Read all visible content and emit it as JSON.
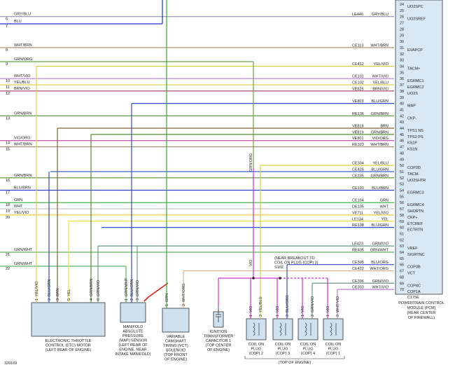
{
  "figure_id": "320169",
  "left_wires": [
    {
      "number": "6",
      "color_label": "GRY/BLU",
      "color": "#8a8fb8"
    },
    {
      "number": "7",
      "color_label": "BLU",
      "color": "#2030d0"
    },
    {
      "number": "8",
      "color_label": "WHT/BRN",
      "color": "#a88860"
    },
    {
      "number": "9",
      "color_label": "GRN/ORG",
      "color": "#6aa040"
    },
    {
      "number": "10",
      "color_label": "WHT/VIO",
      "color": "#b080c8"
    },
    {
      "number": "11",
      "color_label": "YEL/BLU",
      "color": "#d0d040"
    },
    {
      "number": "12",
      "color_label": "BRN/VIO",
      "color": "#a05070"
    },
    {
      "number": "13",
      "color_label": "GRN/BRN",
      "color": "#5a8a30"
    },
    {
      "number": "14",
      "color_label": "VIO/ORG",
      "color": "#c040a0"
    },
    {
      "number": "15",
      "color_label": "WHT/BRN",
      "color": "#a88860"
    },
    {
      "number": "16",
      "color_label": "GRN/BRN",
      "color": "#5a8a30"
    },
    {
      "number": "17",
      "color_label": "BLU/BRN",
      "color": "#3040c0"
    },
    {
      "number": "18",
      "color_label": "GRN",
      "color": "#30b030"
    },
    {
      "number": "19",
      "color_label": "WHT",
      "color": "#c0c0c0"
    },
    {
      "number": "20",
      "color_label": "YEL/VIO",
      "color": "#e0d050"
    },
    {
      "number": "21",
      "color_label": "GRN/WHT",
      "color": "#60b060"
    },
    {
      "number": "22",
      "color_label": "GRN/WHT",
      "color": "#60b060"
    }
  ],
  "pcm": {
    "connector": "C175E",
    "label": [
      "POWERTRAIN CONTROL",
      "MODULE (PCM)",
      "(REAR CENTER",
      "OF FIREWALL)"
    ],
    "rows": [
      {
        "pin": "24",
        "signal": "UO2SPC"
      },
      {
        "pin": "25"
      },
      {
        "pin": "26",
        "code": "LE446",
        "color_label": "GRY/BLU",
        "signal": "UO2SREF",
        "color": "#8a8fb8"
      },
      {
        "pin": "27"
      },
      {
        "pin": "28"
      },
      {
        "pin": "29"
      },
      {
        "pin": "30"
      },
      {
        "pin": "31",
        "code": "CE113",
        "color_label": "WHT/BRN",
        "signal": "EVAPCP",
        "color": "#a88860"
      },
      {
        "pin": "32"
      },
      {
        "pin": "33"
      },
      {
        "pin": "34",
        "code": "CE412",
        "color_label": "YEL/VIO",
        "signal": "TACM+",
        "color": "#e0d050"
      },
      {
        "pin": "35"
      },
      {
        "pin": "36",
        "code": "CE101",
        "color_label": "WHT/VIO",
        "signal": "EGRMC1",
        "color": "#b080c8"
      },
      {
        "pin": "37",
        "code": "CE102",
        "color_label": "YEL/BLU",
        "signal": "EGRMC2",
        "color": "#d0d040"
      },
      {
        "pin": "38",
        "code": "VE826",
        "color_label": "BRN/VIO",
        "signal": "UO2S",
        "color": "#a05070"
      },
      {
        "pin": "39"
      },
      {
        "pin": "40",
        "code": "VE803",
        "color_label": "BLU/GRN",
        "signal": "MAP",
        "color": "#2a50c8"
      },
      {
        "pin": "41"
      },
      {
        "pin": "42",
        "code": "RE136",
        "color_label": "GRN/BRN",
        "signal": "CKP-",
        "color": "#5a8a30"
      },
      {
        "pin": "43"
      },
      {
        "pin": "44",
        "code": "VE818",
        "color_label": "BRN",
        "signal": "TPS1 NS",
        "color": "#8a6030"
      },
      {
        "pin": "45",
        "code": "VE819",
        "color_label": "GRN/BRN",
        "signal": "TPS2 PS",
        "color": "#5a8a30"
      },
      {
        "pin": "46",
        "code": "VE801",
        "color_label": "VIO/ORG",
        "signal": "KS1P",
        "color": "#c040a0"
      },
      {
        "pin": "47",
        "code": "RE323",
        "color_label": "WHT/BRN",
        "signal": "KS1N",
        "color": "#a88860"
      },
      {
        "pin": "48"
      },
      {
        "pin": "49"
      },
      {
        "pin": "50",
        "code": "CE304",
        "color_label": "YEL/BLU",
        "signal": "COP2D",
        "color": "#d0d040"
      },
      {
        "pin": "51",
        "code": "CE426",
        "color_label": "BLU/GRN",
        "signal": "TACM-",
        "color": "#2a50c8"
      },
      {
        "pin": "52",
        "code": "CE235",
        "color_label": "GRN/BRN",
        "signal": "UO2SHTR",
        "color": "#5a8a30"
      },
      {
        "pin": "53"
      },
      {
        "pin": "54",
        "code": "CE103",
        "color_label": "BLU/BRN",
        "signal": "EGRMC3",
        "color": "#3040c0"
      },
      {
        "pin": "55"
      },
      {
        "pin": "56",
        "code": "CE104",
        "color_label": "GRN",
        "signal": "EGRMC4",
        "color": "#30b030"
      },
      {
        "pin": "57",
        "code": "DE135",
        "color_label": "WHT",
        "signal": "SHORTN",
        "color": "#c0c0c0"
      },
      {
        "pin": "58",
        "code": "VE711",
        "color_label": "YEL/VIO",
        "signal": "CKP+",
        "color": "#e0d050"
      },
      {
        "pin": "59",
        "code": "LE134",
        "color_label": "YEL",
        "signal": "ETCREF",
        "color": "#f0e040"
      },
      {
        "pin": "60",
        "code": "RE138",
        "color_label": "BLU/GRN",
        "signal": "ECTRTN",
        "color": "#2a50c8"
      },
      {
        "pin": "61"
      },
      {
        "pin": "62"
      },
      {
        "pin": "63",
        "code": "LE423",
        "color_label": "GRN/VIO",
        "signal": "VREF",
        "color": "#6a9a80"
      },
      {
        "pin": "64",
        "code": "RE405",
        "color_label": "GRN/WHT",
        "signal": "SIGRTNC",
        "color": "#60b060"
      },
      {
        "pin": "65"
      },
      {
        "pin": "66",
        "code": "CE305",
        "color_label": "BLU/ORG",
        "signal": "COP3B",
        "color": "#3050c0"
      },
      {
        "pin": "67",
        "code": "CE422",
        "color_label": "WHT/ORG",
        "signal": "VCT",
        "color": "#d8b090"
      },
      {
        "pin": "68"
      },
      {
        "pin": "69",
        "code": "CE306",
        "color_label": "GRN/VIO",
        "signal": "COP4C",
        "color": "#6a9a80"
      },
      {
        "pin": "70",
        "code": "CE303",
        "color_label": "WHT/VIO",
        "signal": "COP1A",
        "color": "#b080c8"
      }
    ]
  },
  "components": [
    {
      "label": [
        "ELECTRONIC THROTTLE",
        "CONTROL (ETC) MOTOR",
        "(LEFT REAR OF ENGINE)"
      ],
      "pins": [
        {
          "pin": "1",
          "wire": "YEL/VIO"
        },
        {
          "pin": "2",
          "wire": "BLU/GRN"
        },
        {
          "pin": "3",
          "wire": "BRN"
        },
        {
          "pin": "5",
          "wire": "YEL"
        },
        {
          "pin": "4",
          "wire": "GRN/BRN"
        },
        {
          "pin": "6",
          "wire": "GRN/VIO"
        }
      ]
    },
    {
      "label": [
        "MANIFOLD",
        "ABSOLUTE",
        "PRESSURE",
        "(MAP) SENSOR",
        "(LEFT REAR OF",
        "ENGINE, NEAR",
        "INTAKE MANIFOLD)"
      ],
      "pins": [
        {
          "pin": "1",
          "wire": "GRN/WHT"
        },
        {
          "pin": "2",
          "wire": "BLU/GRN"
        },
        {
          "pin": "3",
          "wire": "GRN/VIO"
        }
      ]
    },
    {
      "label": [
        "VARIABLE",
        "CAMSHAFT",
        "TIMING (VCT)",
        "SOLENOID",
        "(TOP FRONT",
        "OF ENGINE)"
      ],
      "pins": [
        {
          "pin": "1",
          "wire": "GRN"
        },
        {
          "pin": "2",
          "wire": "WHT/ORG"
        }
      ]
    },
    {
      "label": [
        "IGNITION",
        "TRANSFORMER",
        "CAPACITOR 1",
        "(TOP CENTER",
        "OF ENGINE)"
      ],
      "pins": []
    },
    {
      "label": [
        "COIL ON",
        "PLUG",
        "(COP) 2"
      ],
      "pins": [
        {
          "pin": "1",
          "wire": "VIO"
        },
        {
          "pin": "2",
          "wire": "YEL/BLU"
        }
      ]
    },
    {
      "label": [
        "COIL ON",
        "PLUG",
        "(COP) 3"
      ],
      "pins": [
        {
          "pin": "1",
          "wire": "VIO"
        },
        {
          "pin": "2",
          "wire": "BLU/ORG"
        }
      ]
    },
    {
      "label": [
        "COIL ON",
        "PLUG",
        "(COP) 4"
      ],
      "pins": [
        {
          "pin": "1",
          "wire": "VIO"
        },
        {
          "pin": "2",
          "wire": "GRN/VIO"
        }
      ]
    },
    {
      "label": [
        "COIL ON",
        "PLUG",
        "(COP) 1"
      ],
      "pins": [
        {
          "pin": "1",
          "wire": "VIO"
        },
        {
          "pin": "2",
          "wire": "WHT/VIO"
        }
      ]
    }
  ],
  "coil_group_label": "(TOP OF ENGINE)",
  "splice_note": [
    "(NEAR BREAKOUT TO",
    "COIL ON PLUG (COP) 3)",
    "S102"
  ],
  "inline_labels": [
    "GRN/ORG",
    "VIO"
  ]
}
